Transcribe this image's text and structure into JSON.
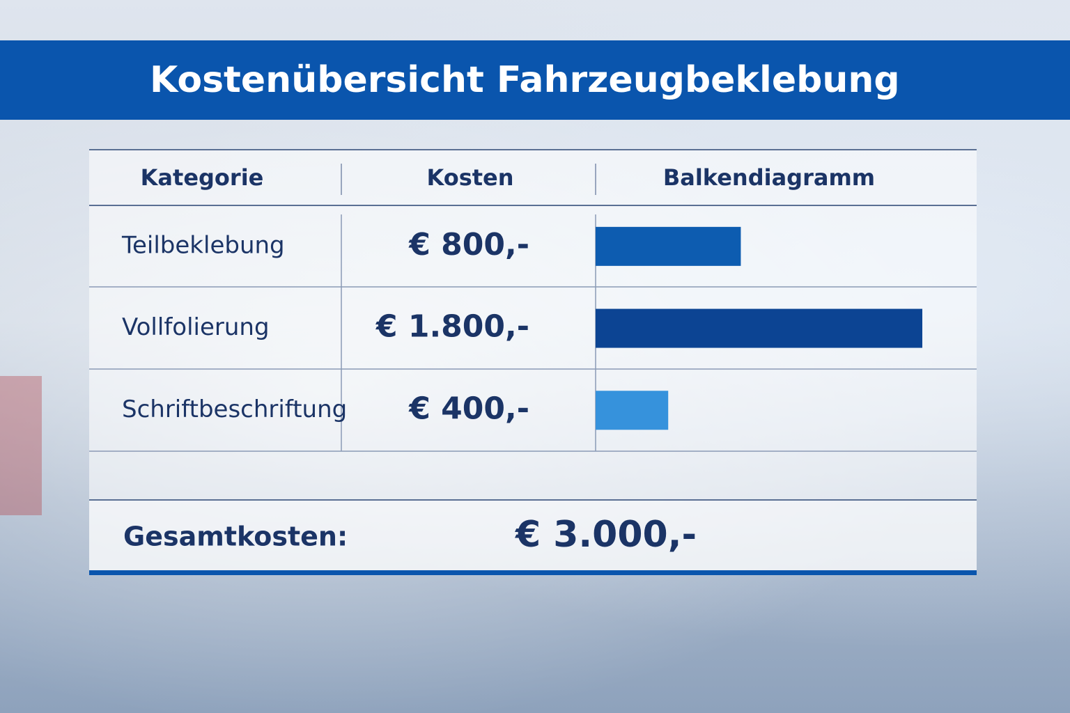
{
  "header": {
    "title": "Kostenübersicht Fahrzeugbeklebung"
  },
  "table": {
    "headers": [
      "Kategorie",
      "Kosten",
      "Balkendiagramm"
    ],
    "rows": [
      {
        "category": "Teilbeklebung",
        "cost": "€ 800,-",
        "value": 800,
        "color": "#0d5cb0"
      },
      {
        "category": "Vollfolierung",
        "cost": "€ 1.800,-",
        "value": 1800,
        "color": "#0c4493"
      },
      {
        "category": "Schriftbeschriftung",
        "cost": "€ 400,-",
        "value": 400,
        "color": "#3692dc"
      }
    ],
    "total": {
      "label": "Gesamtkosten:",
      "cost": "€ 3.000,-"
    }
  }
}
